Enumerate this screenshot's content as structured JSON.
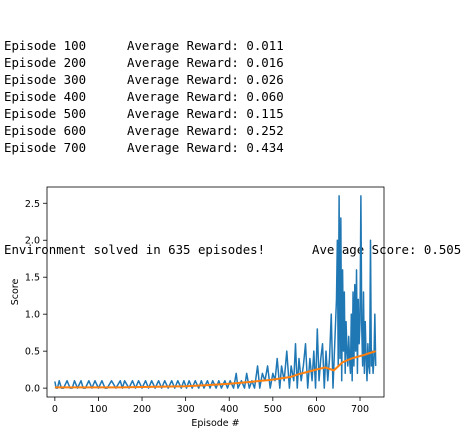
{
  "log": {
    "episodes": [
      {
        "label": "Episode 100",
        "reward": "Average Reward: 0.011"
      },
      {
        "label": "Episode 200",
        "reward": "Average Reward: 0.016"
      },
      {
        "label": "Episode 300",
        "reward": "Average Reward: 0.026"
      },
      {
        "label": "Episode 400",
        "reward": "Average Reward: 0.060"
      },
      {
        "label": "Episode 500",
        "reward": "Average Reward: 0.115"
      },
      {
        "label": "Episode 600",
        "reward": "Average Reward: 0.252"
      },
      {
        "label": "Episode 700",
        "reward": "Average Reward: 0.434"
      }
    ],
    "solved_message": "Environment solved in 635 episodes!",
    "average_score": "Average Score: 0.505"
  },
  "chart_data": {
    "type": "line",
    "xlabel": "Episode #",
    "ylabel": "Score",
    "xlim": [
      -18,
      755
    ],
    "ylim": [
      -0.12,
      2.72
    ],
    "xticks": [
      0,
      100,
      200,
      300,
      400,
      500,
      600,
      700
    ],
    "yticks": [
      0.0,
      0.5,
      1.0,
      1.5,
      2.0,
      2.5
    ],
    "grid": false,
    "series": [
      {
        "color": "#1f77b4",
        "x": [
          0,
          3,
          6,
          10,
          15,
          20,
          28,
          35,
          40,
          45,
          52,
          60,
          65,
          70,
          78,
          85,
          92,
          100,
          108,
          115,
          120,
          130,
          140,
          150,
          155,
          160,
          170,
          178,
          185,
          192,
          200,
          208,
          215,
          222,
          230,
          238,
          245,
          252,
          260,
          268,
          275,
          282,
          290,
          296,
          302,
          308,
          315,
          322,
          330,
          336,
          342,
          350,
          356,
          362,
          370,
          376,
          382,
          390,
          396,
          402,
          410,
          416,
          420,
          428,
          435,
          440,
          446,
          452,
          458,
          465,
          470,
          476,
          482,
          488,
          494,
          500,
          505,
          510,
          516,
          520,
          526,
          532,
          538,
          542,
          548,
          552,
          556,
          560,
          565,
          570,
          575,
          580,
          585,
          590,
          594,
          598,
          602,
          606,
          610,
          614,
          618,
          622,
          626,
          630,
          634,
          638,
          642,
          646,
          648,
          650,
          652,
          654,
          656,
          658,
          660,
          662,
          664,
          666,
          668,
          670,
          672,
          674,
          676,
          678,
          680,
          682,
          684,
          686,
          688,
          690,
          692,
          694,
          696,
          698,
          700,
          702,
          704,
          706,
          708,
          710,
          712,
          714,
          716,
          718,
          720,
          722,
          724,
          726,
          728,
          730,
          732,
          734,
          736
        ],
        "y": [
          0.09,
          0.0,
          0.0,
          0.1,
          0.0,
          0.0,
          0.1,
          0.0,
          0.0,
          0.1,
          0.0,
          0.1,
          0.0,
          0.0,
          0.1,
          0.0,
          0.1,
          0.0,
          0.1,
          0.0,
          0.0,
          0.1,
          0.0,
          0.1,
          0.0,
          0.1,
          0.0,
          0.1,
          0.0,
          0.1,
          0.0,
          0.1,
          0.0,
          0.1,
          0.0,
          0.1,
          0.0,
          0.1,
          0.0,
          0.1,
          0.0,
          0.1,
          0.0,
          0.1,
          0.0,
          0.1,
          0.0,
          0.1,
          0.0,
          0.1,
          0.0,
          0.1,
          0.0,
          0.1,
          0.0,
          0.1,
          0.0,
          0.1,
          0.0,
          0.1,
          0.0,
          0.2,
          0.0,
          0.1,
          0.0,
          0.2,
          0.0,
          0.1,
          0.0,
          0.3,
          0.0,
          0.2,
          0.1,
          0.3,
          0.0,
          0.2,
          0.1,
          0.4,
          0.0,
          0.3,
          0.1,
          0.5,
          0.0,
          0.3,
          0.1,
          0.6,
          0.0,
          0.4,
          0.1,
          0.3,
          0.6,
          0.0,
          0.4,
          0.1,
          0.5,
          0.0,
          0.8,
          0.1,
          0.4,
          0.6,
          0.0,
          0.5,
          0.1,
          0.4,
          1.0,
          0.0,
          0.6,
          1.2,
          2.0,
          0.3,
          2.6,
          0.4,
          2.3,
          0.1,
          1.6,
          0.5,
          1.3,
          0.2,
          0.9,
          0.5,
          0.3,
          0.7,
          0.4,
          0.2,
          1.0,
          0.1,
          1.3,
          0.3,
          1.4,
          0.5,
          1.6,
          0.2,
          1.2,
          0.6,
          0.9,
          2.6,
          0.8,
          0.3,
          1.3,
          0.2,
          0.9,
          0.4,
          0.1,
          0.6,
          0.3,
          0.2,
          2.0,
          0.3,
          0.5,
          0.2,
          0.4,
          1.0,
          0.3
        ]
      },
      {
        "color": "#ff7f0e",
        "x": [
          0,
          50,
          100,
          150,
          200,
          250,
          300,
          350,
          400,
          450,
          500,
          540,
          560,
          580,
          600,
          620,
          640,
          660,
          680,
          700,
          710,
          720,
          736
        ],
        "y": [
          0.01,
          0.01,
          0.01,
          0.01,
          0.016,
          0.02,
          0.026,
          0.04,
          0.06,
          0.085,
          0.115,
          0.15,
          0.19,
          0.22,
          0.252,
          0.28,
          0.24,
          0.35,
          0.4,
          0.434,
          0.45,
          0.47,
          0.5
        ]
      }
    ]
  }
}
